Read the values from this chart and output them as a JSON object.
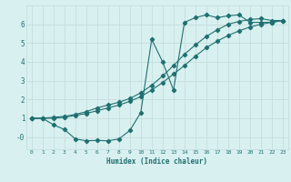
{
  "xlabel": "Humidex (Indice chaleur)",
  "ylabel": "",
  "xlim": [
    -0.5,
    23.5
  ],
  "ylim": [
    -0.65,
    7.0
  ],
  "yticks": [
    0,
    1,
    2,
    3,
    4,
    5,
    6
  ],
  "ytick_labels": [
    "-0",
    "1",
    "2",
    "3",
    "4",
    "5",
    "6"
  ],
  "xticks": [
    0,
    1,
    2,
    3,
    4,
    5,
    6,
    7,
    8,
    9,
    10,
    11,
    12,
    13,
    14,
    15,
    16,
    17,
    18,
    19,
    20,
    21,
    22,
    23
  ],
  "bg_color": "#d9f0f0",
  "grid_color": "#c4dede",
  "line_color": "#1f7070",
  "line1_x": [
    0,
    1,
    2,
    3,
    4,
    5,
    6,
    7,
    8,
    9,
    10,
    11,
    12,
    13,
    14,
    15,
    16,
    17,
    18,
    19,
    20,
    21,
    22,
    23
  ],
  "line1_y": [
    1.0,
    1.0,
    0.65,
    0.4,
    -0.1,
    -0.2,
    -0.18,
    -0.2,
    -0.1,
    0.35,
    1.3,
    5.2,
    4.0,
    2.5,
    6.1,
    6.35,
    6.5,
    6.35,
    6.45,
    6.5,
    6.1,
    6.1,
    6.1,
    6.2
  ],
  "line2_x": [
    0,
    1,
    2,
    3,
    4,
    5,
    6,
    7,
    8,
    9,
    10,
    11,
    12,
    13,
    14,
    15,
    16,
    17,
    18,
    19,
    20,
    21,
    22,
    23
  ],
  "line2_y": [
    1.0,
    1.0,
    1.0,
    1.05,
    1.15,
    1.25,
    1.4,
    1.55,
    1.7,
    1.9,
    2.15,
    2.5,
    2.9,
    3.35,
    3.8,
    4.3,
    4.75,
    5.1,
    5.4,
    5.65,
    5.85,
    6.0,
    6.1,
    6.2
  ],
  "line3_x": [
    0,
    1,
    2,
    3,
    4,
    5,
    6,
    7,
    8,
    9,
    10,
    11,
    12,
    13,
    14,
    15,
    16,
    17,
    18,
    19,
    20,
    21,
    22,
    23
  ],
  "line3_y": [
    1.0,
    1.0,
    1.05,
    1.1,
    1.2,
    1.35,
    1.55,
    1.7,
    1.85,
    2.05,
    2.35,
    2.75,
    3.25,
    3.8,
    4.4,
    4.9,
    5.35,
    5.7,
    6.0,
    6.15,
    6.25,
    6.3,
    6.2,
    6.2
  ]
}
